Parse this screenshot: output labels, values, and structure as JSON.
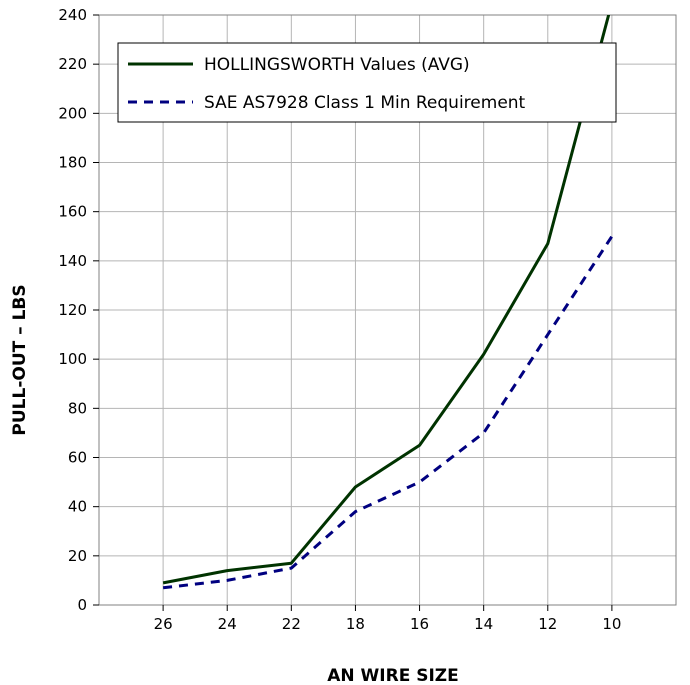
{
  "chart_data": {
    "type": "line",
    "categories": [
      "26",
      "24",
      "22",
      "18",
      "16",
      "14",
      "12",
      "10"
    ],
    "yticks": [
      "0",
      "20",
      "40",
      "60",
      "80",
      "100",
      "120",
      "140",
      "160",
      "180",
      "200",
      "220",
      "240"
    ],
    "ylim": [
      0,
      240
    ],
    "xlabel": "AN WIRE SIZE",
    "ylabel": "PULL-OUT – LBS",
    "grid": true,
    "legend_position": "top-left",
    "series": [
      {
        "name": "HOLLINGSWORTH Values (AVG)",
        "color": "#003300",
        "line_style": "solid",
        "x": [
          "26",
          "24",
          "22",
          "18",
          "16",
          "14",
          "12",
          "10"
        ],
        "values": [
          9,
          14,
          17,
          48,
          65,
          102,
          147,
          245
        ]
      },
      {
        "name": "SAE AS7928 Class 1 Min Requirement",
        "color": "#000080",
        "line_style": "dashed",
        "x": [
          "26",
          "24",
          "22",
          "18",
          "16",
          "14",
          "12",
          "10"
        ],
        "values": [
          7,
          10,
          15,
          38,
          50,
          70,
          110,
          150
        ]
      }
    ]
  }
}
